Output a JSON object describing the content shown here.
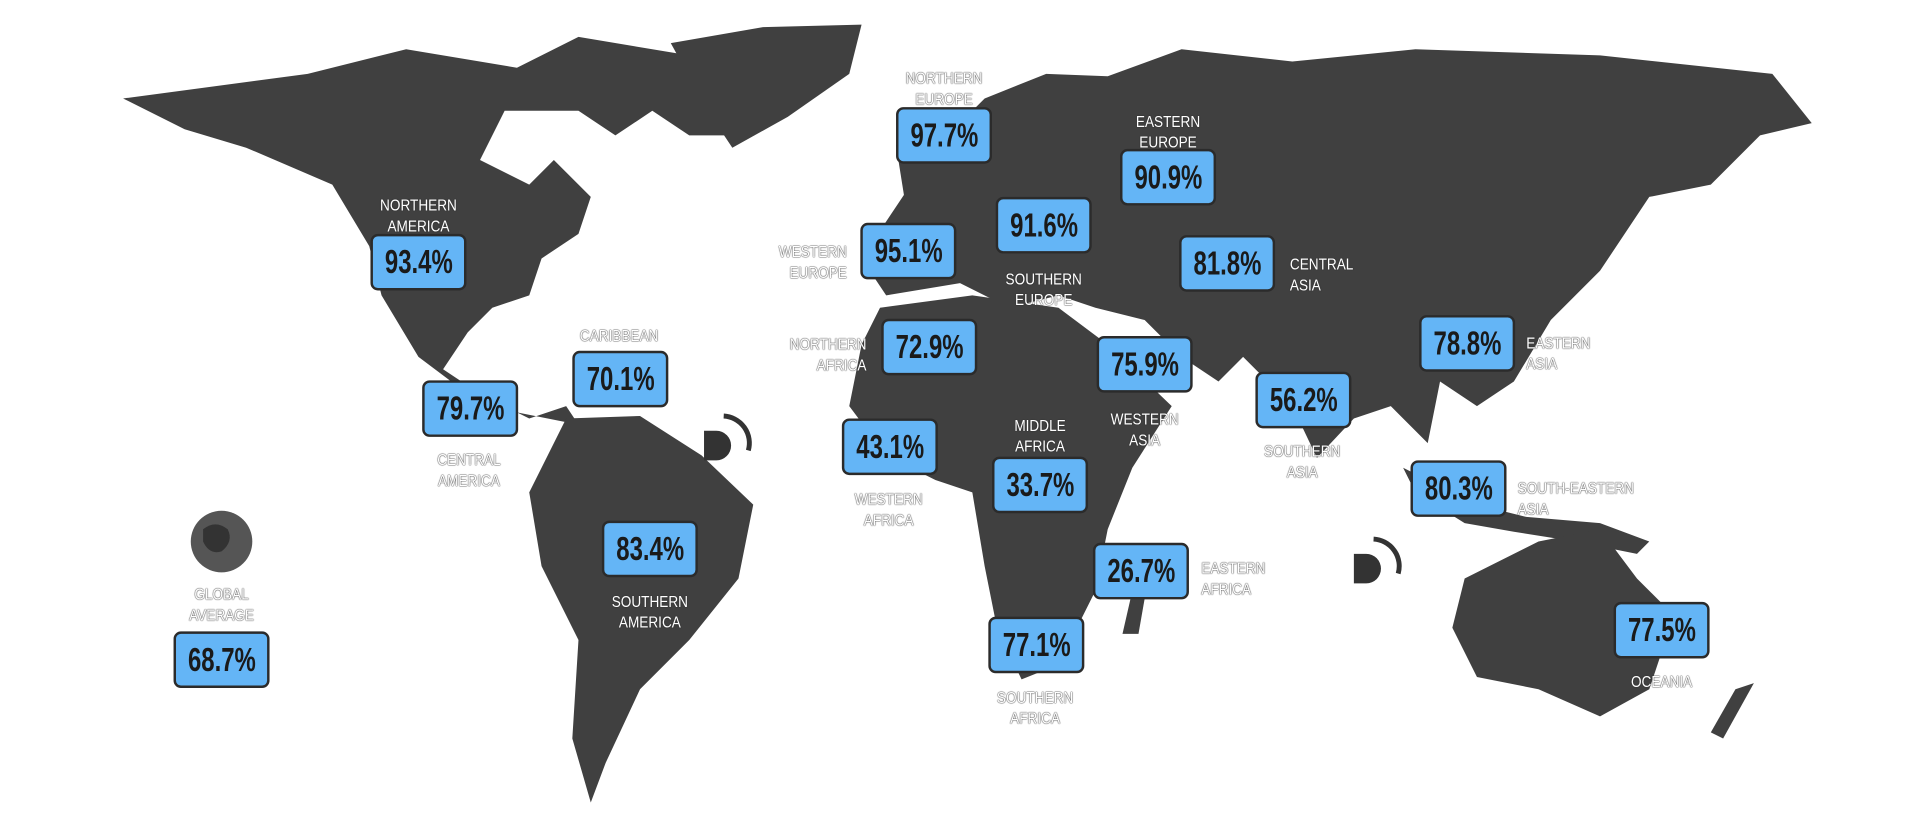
{
  "colors": {
    "land": "#404040",
    "box": "#64b5f6",
    "box_border": "#2b2b2b"
  },
  "regions": [
    {
      "name": "NORTHERN\nEUROPE",
      "value": "97.7%"
    },
    {
      "name": "EASTERN\nEUROPE",
      "value": "90.9%"
    },
    {
      "name": "NORTHERN\nAMERICA",
      "value": "93.4%"
    },
    {
      "name": "SOUTHERN\nEUROPE",
      "value": "91.6%"
    },
    {
      "name": "WESTERN\nEUROPE",
      "value": "95.1%"
    },
    {
      "name": "CENTRAL\nASIA",
      "value": "81.8%"
    },
    {
      "name": "NORTHERN\nAFRICA",
      "value": "72.9%"
    },
    {
      "name": "CARIBBEAN",
      "value": "70.1%"
    },
    {
      "name": "WESTERN\nASIA",
      "value": "75.9%"
    },
    {
      "name": "CENTRAL\nAMERICA",
      "value": "79.7%"
    },
    {
      "name": "EASTERN\nASIA",
      "value": "78.8%"
    },
    {
      "name": "SOUTHERN\nASIA",
      "value": "56.2%"
    },
    {
      "name": "WESTERN\nAFRICA",
      "value": "43.1%"
    },
    {
      "name": "MIDDLE\nAFRICA",
      "value": "33.7%"
    },
    {
      "name": "SOUTH-EASTERN\nASIA",
      "value": "80.3%"
    },
    {
      "name": "SOUTHERN\nAMERICA",
      "value": "83.4%"
    },
    {
      "name": "EASTERN\nAFRICA",
      "value": "26.7%"
    },
    {
      "name": "SOUTHERN\nAFRICA",
      "value": "77.1%"
    },
    {
      "name": "OCEANIA",
      "value": "77.5%"
    }
  ],
  "global": {
    "name": "GLOBAL\nAVERAGE",
    "value": "68.7%",
    "icon": "globe-icon"
  },
  "watermark_icon": "logo-d-icon"
}
